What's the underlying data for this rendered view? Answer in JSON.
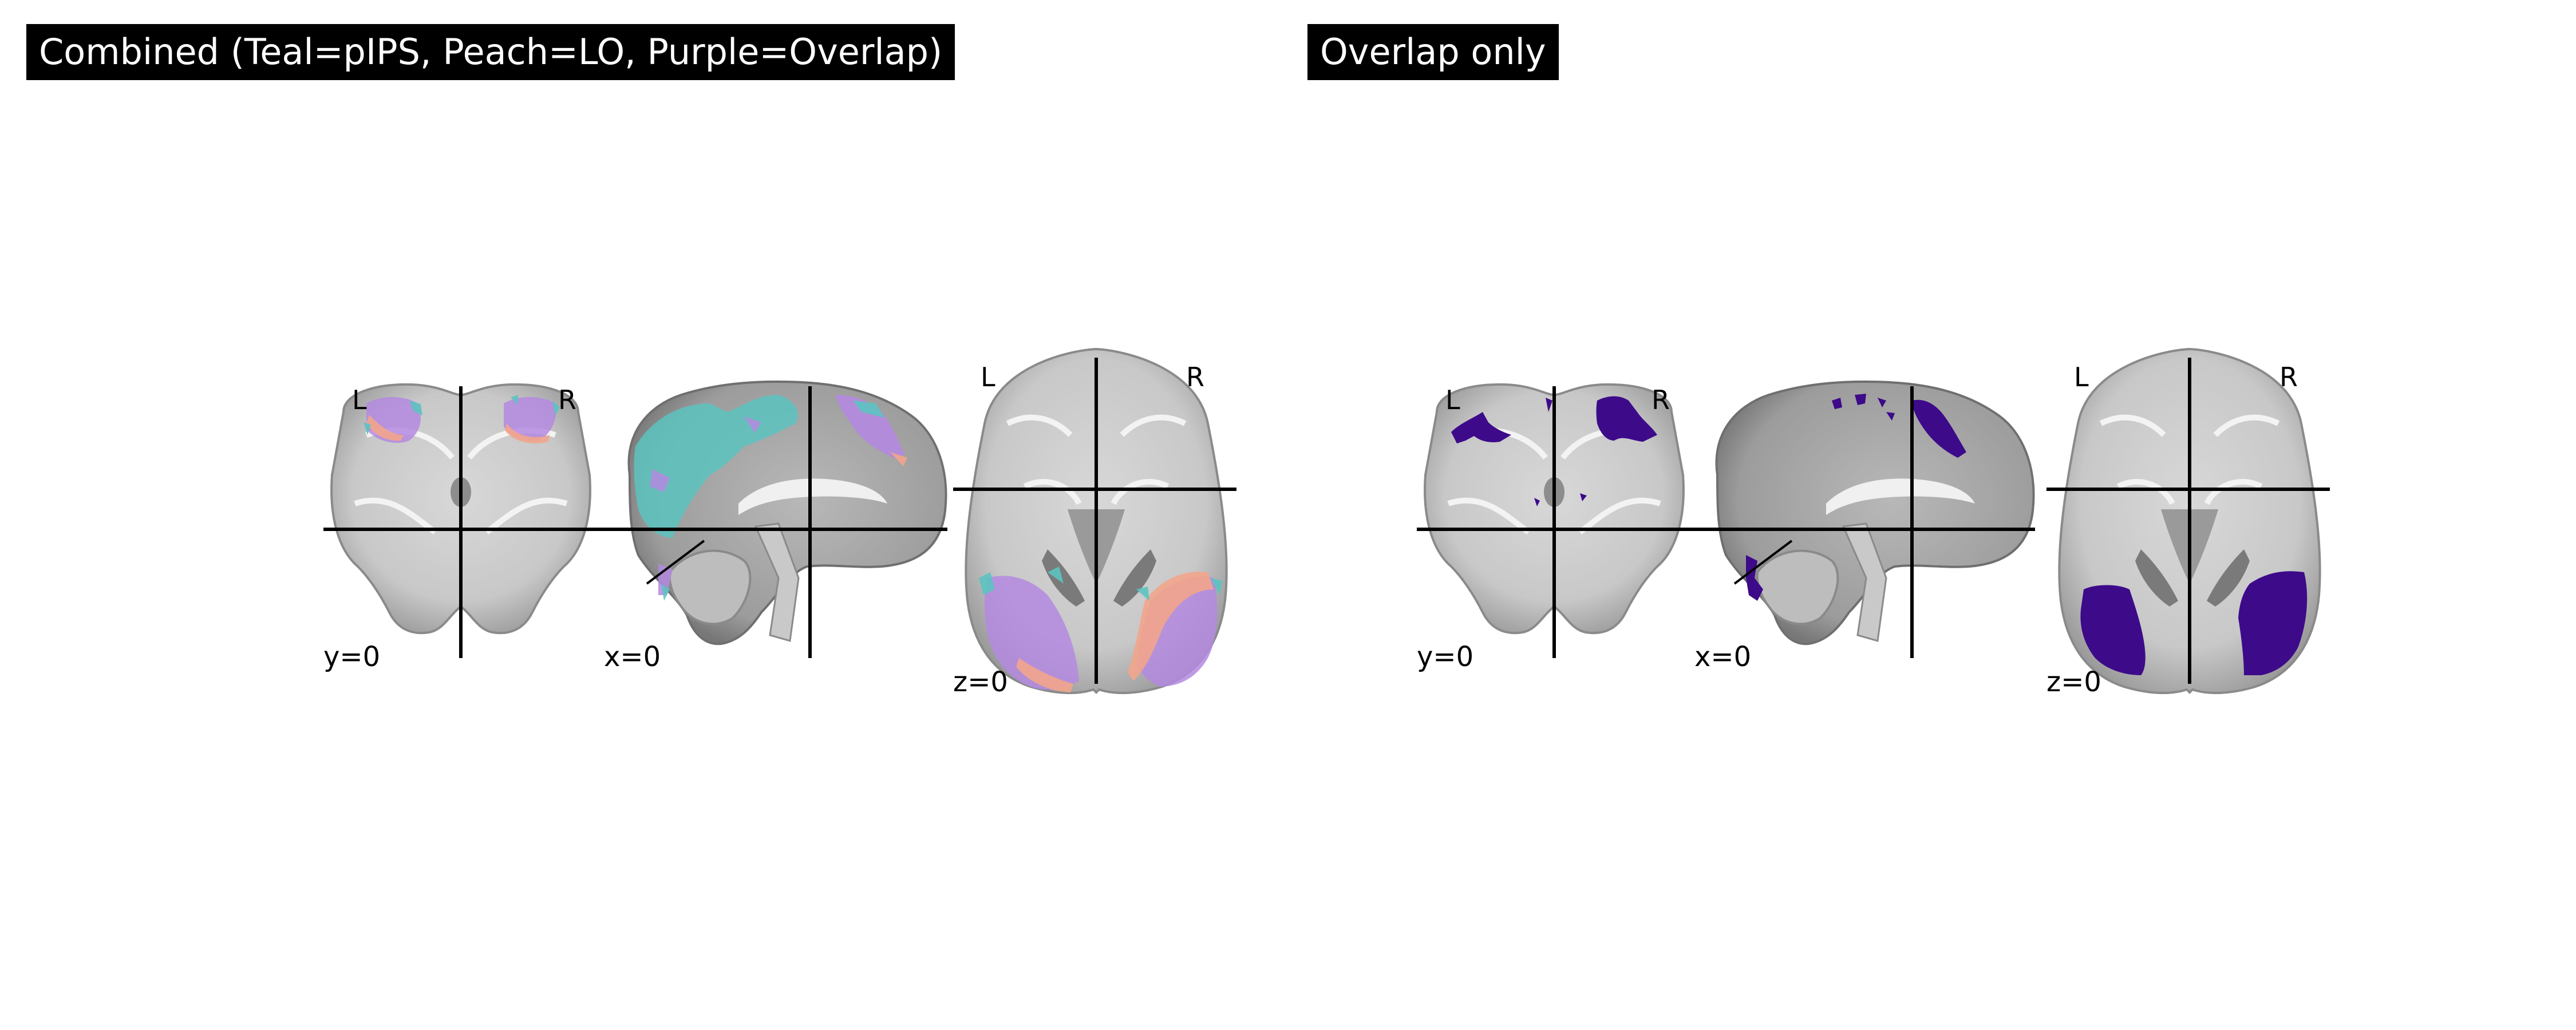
{
  "panels": [
    {
      "title": "Combined (Teal=pIPS, Peach=LO, Purple=Overlap)",
      "views": {
        "coronal": {
          "cut_label": "y=0",
          "left_label": "L",
          "right_label": "R"
        },
        "sagittal": {
          "cut_label": "x=0"
        },
        "axial": {
          "cut_label": "z=0",
          "left_label": "L",
          "right_label": "R"
        }
      }
    },
    {
      "title": "Overlap only",
      "views": {
        "coronal": {
          "cut_label": "y=0",
          "left_label": "L",
          "right_label": "R"
        },
        "sagittal": {
          "cut_label": "x=0"
        },
        "axial": {
          "cut_label": "z=0",
          "left_label": "L",
          "right_label": "R"
        }
      }
    }
  ],
  "colors": {
    "teal_pIPS": "#5cc3c0",
    "peach_LO": "#f2a58c",
    "purple_overlap": "#b48ae0",
    "overlap_only": "#3d0a8a",
    "brain_light": "#e4e4e4",
    "brain_mid": "#bdbdbd",
    "brain_dark": "#8c8c8c",
    "crosshair": "#000000"
  }
}
